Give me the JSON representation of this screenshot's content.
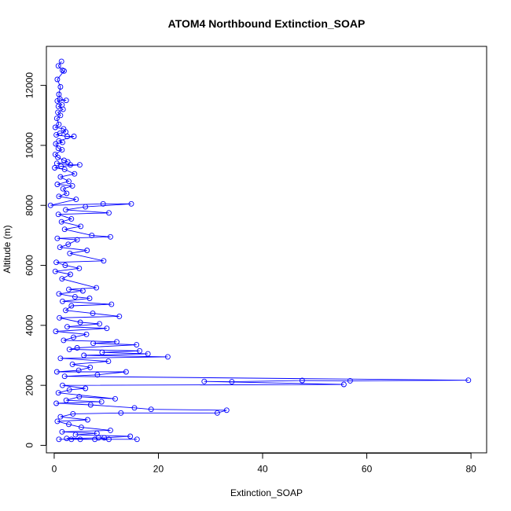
{
  "chart_data": {
    "type": "line",
    "title": "ATOM4 Northbound Extinction_SOAP",
    "xlabel": "Extinction_SOAP",
    "ylabel": "Altitude (m)",
    "xlim": [
      -1.5,
      83
    ],
    "ylim": [
      -250,
      13300
    ],
    "x_ticks": [
      0,
      20,
      40,
      60,
      80
    ],
    "y_ticks": [
      0,
      2000,
      4000,
      6000,
      8000,
      10000,
      12000
    ],
    "grid": false,
    "legend": "none",
    "series": [
      {
        "color": "#0000ff",
        "marker": "open-circle",
        "points": [
          [
            1.4,
            12800
          ],
          [
            0.8,
            12650
          ],
          [
            1.6,
            12500
          ],
          [
            1.9,
            12480
          ],
          [
            0.6,
            12200
          ],
          [
            1.2,
            11950
          ],
          [
            0.9,
            11700
          ],
          [
            1.1,
            11550
          ],
          [
            2.3,
            11500
          ],
          [
            0.6,
            11480
          ],
          [
            1.5,
            11350
          ],
          [
            0.8,
            11300
          ],
          [
            1.7,
            11200
          ],
          [
            0.7,
            11100
          ],
          [
            1.2,
            11000
          ],
          [
            0.5,
            10900
          ],
          [
            0.9,
            10700
          ],
          [
            0.2,
            10600
          ],
          [
            1.8,
            10550
          ],
          [
            2.2,
            10450
          ],
          [
            1.1,
            10400
          ],
          [
            0.4,
            10350
          ],
          [
            2.5,
            10300
          ],
          [
            3.8,
            10300
          ],
          [
            0.9,
            10150
          ],
          [
            1.6,
            10100
          ],
          [
            0.3,
            10050
          ],
          [
            0.8,
            9900
          ],
          [
            1.5,
            9850
          ],
          [
            0.2,
            9700
          ],
          [
            0.7,
            9600
          ],
          [
            1.9,
            9500
          ],
          [
            2.6,
            9450
          ],
          [
            0.5,
            9400
          ],
          [
            3.1,
            9350
          ],
          [
            4.9,
            9350
          ],
          [
            1.3,
            9300
          ],
          [
            0.1,
            9250
          ],
          [
            2.0,
            9200
          ],
          [
            3.9,
            9050
          ],
          [
            1.2,
            8950
          ],
          [
            2.8,
            8800
          ],
          [
            0.6,
            8700
          ],
          [
            3.5,
            8650
          ],
          [
            1.7,
            8550
          ],
          [
            2.4,
            8400
          ],
          [
            0.9,
            8300
          ],
          [
            4.2,
            8200
          ],
          [
            -0.7,
            8000
          ],
          [
            9.4,
            8050
          ],
          [
            14.8,
            8050
          ],
          [
            6.0,
            7950
          ],
          [
            2.2,
            7850
          ],
          [
            10.5,
            7750
          ],
          [
            0.8,
            7700
          ],
          [
            3.3,
            7550
          ],
          [
            1.4,
            7450
          ],
          [
            5.1,
            7300
          ],
          [
            2.0,
            7200
          ],
          [
            7.2,
            7000
          ],
          [
            10.8,
            6950
          ],
          [
            0.6,
            6900
          ],
          [
            4.4,
            6850
          ],
          [
            2.7,
            6700
          ],
          [
            1.1,
            6600
          ],
          [
            6.3,
            6500
          ],
          [
            3.0,
            6400
          ],
          [
            9.5,
            6150
          ],
          [
            0.4,
            6100
          ],
          [
            2.1,
            6000
          ],
          [
            4.8,
            5900
          ],
          [
            0.2,
            5800
          ],
          [
            3.1,
            5700
          ],
          [
            1.5,
            5550
          ],
          [
            8.1,
            5250
          ],
          [
            2.8,
            5200
          ],
          [
            5.5,
            5150
          ],
          [
            0.9,
            5050
          ],
          [
            4.0,
            4950
          ],
          [
            6.8,
            4900
          ],
          [
            1.6,
            4800
          ],
          [
            11.0,
            4700
          ],
          [
            3.3,
            4650
          ],
          [
            2.2,
            4500
          ],
          [
            7.4,
            4400
          ],
          [
            12.5,
            4300
          ],
          [
            1.0,
            4250
          ],
          [
            5.0,
            4100
          ],
          [
            8.7,
            4050
          ],
          [
            2.5,
            3950
          ],
          [
            10.1,
            3900
          ],
          [
            0.3,
            3800
          ],
          [
            6.2,
            3700
          ],
          [
            3.7,
            3600
          ],
          [
            1.8,
            3500
          ],
          [
            12.0,
            3450
          ],
          [
            7.5,
            3400
          ],
          [
            15.8,
            3350
          ],
          [
            4.4,
            3250
          ],
          [
            2.9,
            3200
          ],
          [
            16.4,
            3150
          ],
          [
            9.2,
            3100
          ],
          [
            18.0,
            3050
          ],
          [
            5.7,
            3000
          ],
          [
            21.8,
            2950
          ],
          [
            1.2,
            2900
          ],
          [
            10.4,
            2800
          ],
          [
            3.5,
            2700
          ],
          [
            6.9,
            2600
          ],
          [
            4.7,
            2500
          ],
          [
            0.5,
            2450
          ],
          [
            13.8,
            2450
          ],
          [
            8.3,
            2350
          ],
          [
            2.0,
            2300
          ],
          [
            79.5,
            2170
          ],
          [
            56.8,
            2150
          ],
          [
            47.6,
            2160
          ],
          [
            34.1,
            2120
          ],
          [
            28.8,
            2130
          ],
          [
            55.6,
            2030
          ],
          [
            1.6,
            2000
          ],
          [
            6.0,
            1900
          ],
          [
            2.9,
            1850
          ],
          [
            0.8,
            1750
          ],
          [
            11.7,
            1550
          ],
          [
            4.8,
            1620
          ],
          [
            2.3,
            1500
          ],
          [
            9.1,
            1450
          ],
          [
            0.4,
            1400
          ],
          [
            7.0,
            1350
          ],
          [
            15.4,
            1250
          ],
          [
            18.6,
            1200
          ],
          [
            33.1,
            1170
          ],
          [
            31.3,
            1080
          ],
          [
            12.8,
            1080
          ],
          [
            3.6,
            1050
          ],
          [
            1.2,
            950
          ],
          [
            6.4,
            850
          ],
          [
            0.6,
            800
          ],
          [
            2.8,
            700
          ],
          [
            5.2,
            600
          ],
          [
            10.8,
            500
          ],
          [
            1.5,
            450
          ],
          [
            8.2,
            400
          ],
          [
            4.1,
            350
          ],
          [
            14.6,
            300
          ],
          [
            9.6,
            250
          ],
          [
            2.4,
            230
          ],
          [
            7.8,
            200
          ],
          [
            15.9,
            200
          ],
          [
            5.0,
            200
          ],
          [
            0.9,
            200
          ],
          [
            3.3,
            200
          ],
          [
            10.5,
            200
          ],
          [
            8.5,
            250
          ]
        ]
      }
    ]
  }
}
